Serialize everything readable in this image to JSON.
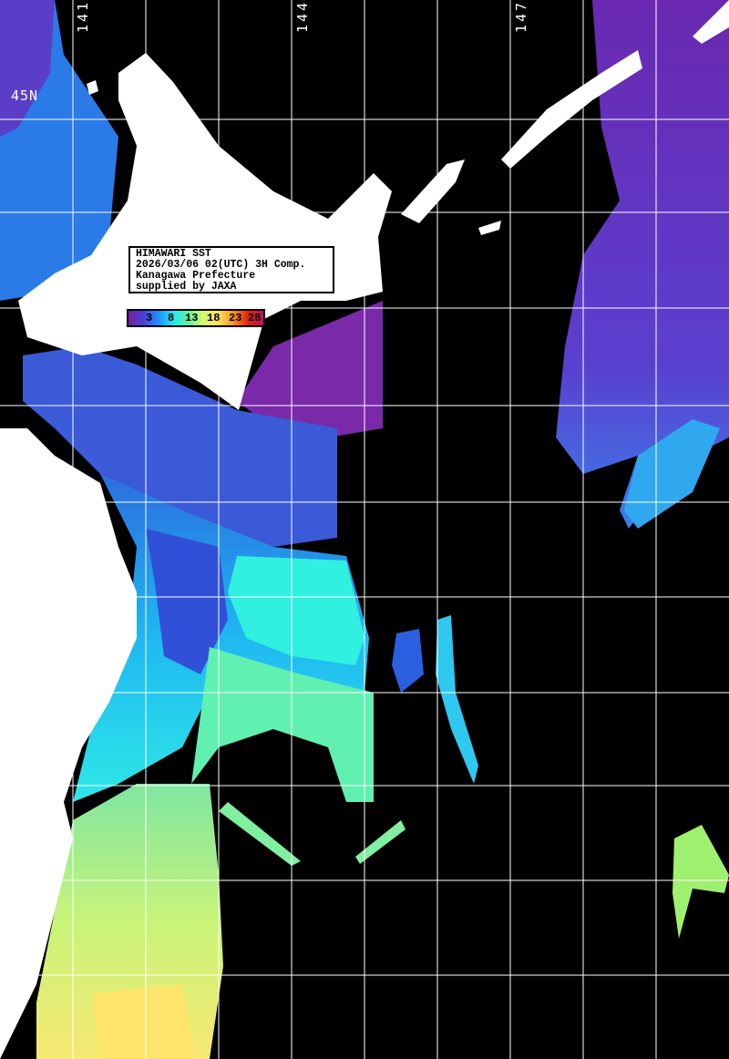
{
  "info": {
    "line1": "HIMAWARI SST",
    "line2": "2026/03/06 02(UTC) 3H Comp.",
    "line3": "Kanagawa Prefecture",
    "line4": "supplied by JAXA"
  },
  "colorbar": {
    "ticks": [
      "3",
      "8",
      "13",
      "18",
      "23",
      "28"
    ],
    "colors": [
      "#7a1fa2",
      "#4b3fd6",
      "#1e90ff",
      "#22e8f0",
      "#5ef0a0",
      "#d8f870",
      "#ffe060",
      "#ff9020",
      "#e02010",
      "#c0106a"
    ]
  },
  "grid": {
    "lon_labels": [
      "141E",
      "144E",
      "147E"
    ],
    "lat_labels": [
      "45N"
    ]
  },
  "colors": {
    "land": "#ffffff",
    "no_data": "#000000",
    "grid": "#ffffff"
  }
}
